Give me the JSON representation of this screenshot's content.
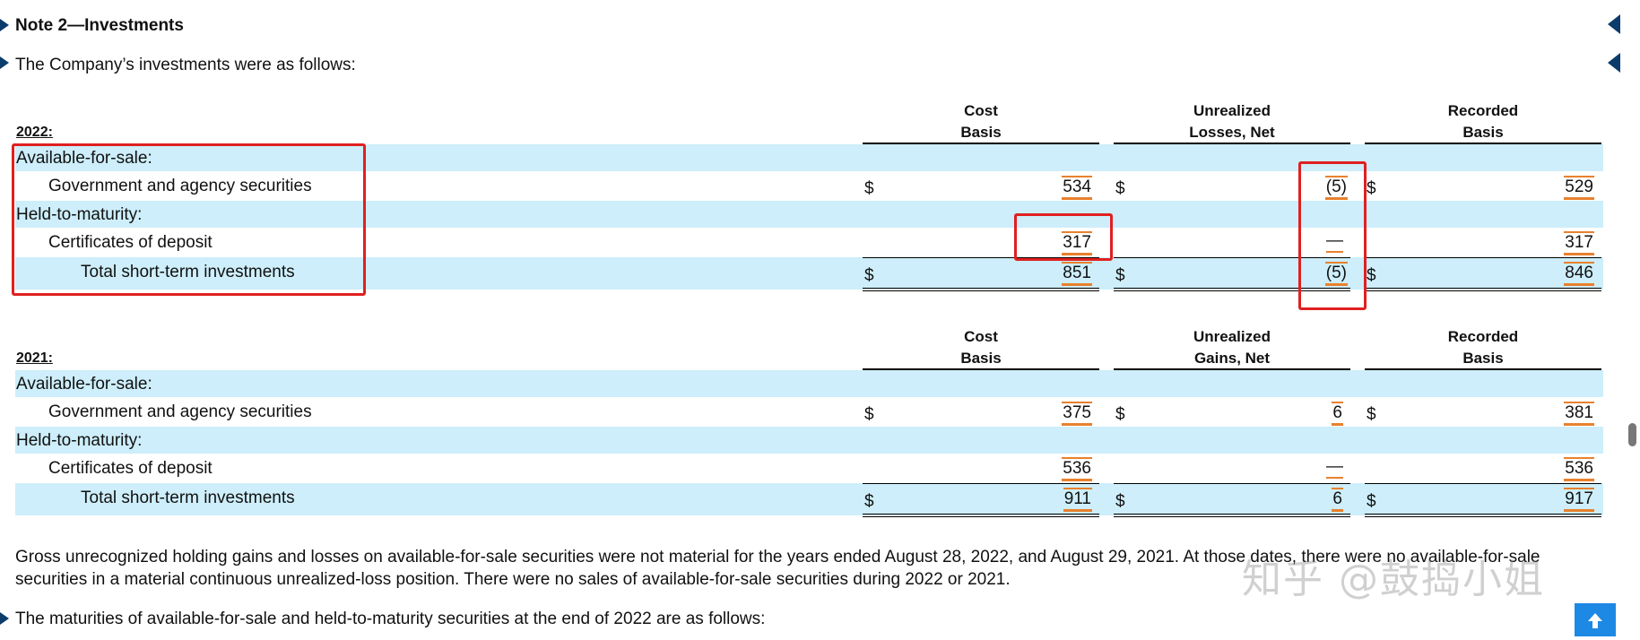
{
  "note_title": "Note 2—Investments",
  "intro": "The Company’s investments were as follows:",
  "tables": [
    {
      "year": "2022:",
      "headers": [
        "Cost\nBasis",
        "Unrealized\nLosses, Net",
        "Recorded\nBasis"
      ],
      "rows": [
        {
          "label": "Available-for-sale:"
        },
        {
          "label": "Government and agency securities",
          "d1": "$",
          "v1": "534",
          "d2": "$",
          "v2": "(5)",
          "d3": "$",
          "v3": "529"
        },
        {
          "label": "Held-to-maturity:"
        },
        {
          "label": "Certificates of deposit",
          "v1": "317",
          "v2": "—",
          "v3": "317"
        },
        {
          "label": "Total short-term investments",
          "d1": "$",
          "v1": "851",
          "d2": "$",
          "v2": "(5)",
          "d3": "$",
          "v3": "846"
        }
      ]
    },
    {
      "year": "2021:",
      "headers": [
        "Cost\nBasis",
        "Unrealized\nGains, Net",
        "Recorded\nBasis"
      ],
      "rows": [
        {
          "label": "Available-for-sale:"
        },
        {
          "label": "Government and agency securities",
          "d1": "$",
          "v1": "375",
          "d2": "$",
          "v2": "6",
          "d3": "$",
          "v3": "381"
        },
        {
          "label": "Held-to-maturity:"
        },
        {
          "label": "Certificates of deposit",
          "v1": "536",
          "v2": "—",
          "v3": "536"
        },
        {
          "label": "Total short-term investments",
          "d1": "$",
          "v1": "911",
          "d2": "$",
          "v2": "6",
          "d3": "$",
          "v3": "917"
        }
      ]
    }
  ],
  "paragraph": "Gross unrecognized holding gains and losses on available-for-sale securities were not material for the years ended August 28, 2022, and August 29, 2021. At those dates, there were no available-for-sale securities in a material continuous unrealized-loss position. There were no sales of available-for-sale securities during 2022 or 2021.",
  "maturities_intro": "The maturities of available-for-sale and held-to-maturity securities at the end of 2022 are as follows:",
  "watermark": "知乎 @鼓捣小姐",
  "colors": {
    "band": "#cdeefa",
    "highlight": "#e8812e",
    "annotation": "#e02020",
    "marker": "#0b3c6b"
  }
}
